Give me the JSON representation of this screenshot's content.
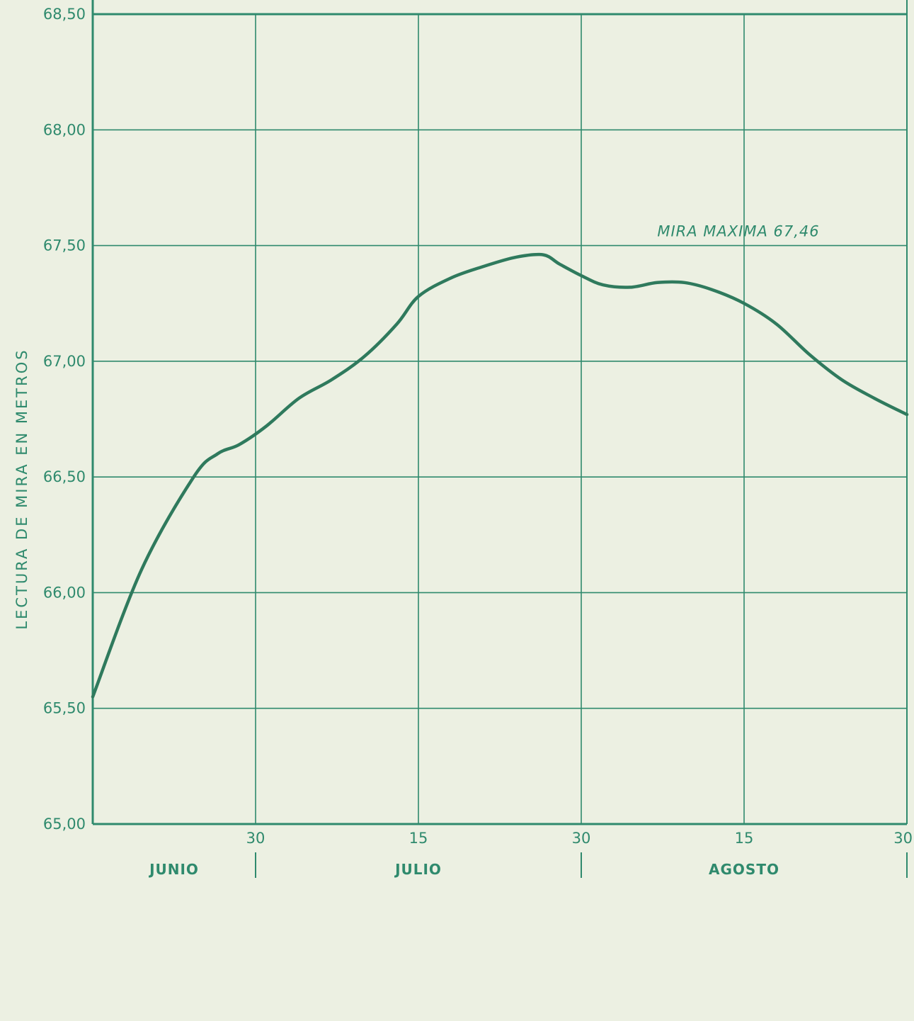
{
  "chart_data": {
    "type": "line",
    "title": "",
    "ylabel": "LECTURA DE MIRA EN METROS",
    "xlabel": "",
    "ylim": [
      65.0,
      68.5
    ],
    "yticks": [
      "65,00",
      "65,50",
      "66,00",
      "66,50",
      "67,00",
      "67,50",
      "68,00",
      "68,50"
    ],
    "ytick_values": [
      65.0,
      65.5,
      66.0,
      66.5,
      67.0,
      67.5,
      68.0,
      68.5
    ],
    "xlim_days": [
      15,
      90
    ],
    "xticks": [
      {
        "label": "30",
        "day": 30
      },
      {
        "label": "15",
        "day": 45
      },
      {
        "label": "30",
        "day": 60
      },
      {
        "label": "15",
        "day": 75
      },
      {
        "label": "30",
        "day": 90
      }
    ],
    "months": [
      {
        "label": "JUNIO",
        "center_day": 22.5,
        "end_day": 30
      },
      {
        "label": "JULIO",
        "center_day": 45,
        "end_day": 60
      },
      {
        "label": "AGOSTO",
        "center_day": 75,
        "end_day": 90
      }
    ],
    "vertical_grid_days": [
      30,
      45,
      60,
      75,
      90
    ],
    "grid": true,
    "annotation": {
      "text": "MIRA MAXIMA 67,46",
      "x_day": 67,
      "y": 67.54
    },
    "series": [
      {
        "points": [
          [
            15.0,
            65.55
          ],
          [
            19.5,
            66.1
          ],
          [
            24.3,
            66.5
          ],
          [
            26.5,
            66.6
          ],
          [
            28.5,
            66.64
          ],
          [
            31.0,
            66.72
          ],
          [
            34.0,
            66.84
          ],
          [
            37.0,
            66.92
          ],
          [
            40.0,
            67.02
          ],
          [
            43.0,
            67.16
          ],
          [
            45.0,
            67.28
          ],
          [
            48.0,
            67.36
          ],
          [
            51.0,
            67.41
          ],
          [
            54.0,
            67.45
          ],
          [
            56.5,
            67.46
          ],
          [
            58.0,
            67.42
          ],
          [
            60.0,
            67.37
          ],
          [
            62.0,
            67.33
          ],
          [
            64.5,
            67.32
          ],
          [
            67.0,
            67.34
          ],
          [
            69.5,
            67.34
          ],
          [
            72.0,
            67.31
          ],
          [
            75.0,
            67.25
          ],
          [
            78.0,
            67.16
          ],
          [
            81.0,
            67.03
          ],
          [
            84.0,
            66.92
          ],
          [
            87.0,
            66.84
          ],
          [
            90.0,
            66.77
          ]
        ],
        "color": "#2f7a5d"
      }
    ],
    "colors": {
      "grid": "#2f8a6d",
      "line": "#2f7a5d",
      "background": "#ecf0e2"
    }
  }
}
